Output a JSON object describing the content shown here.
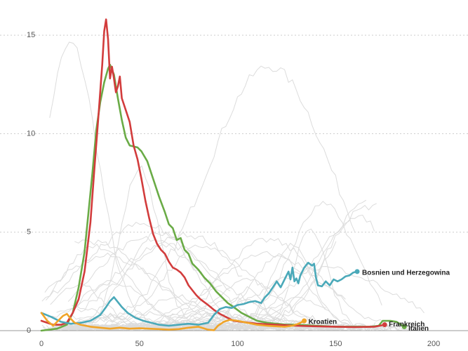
{
  "chart_data": {
    "type": "line",
    "title": "",
    "xlabel": "",
    "ylabel": "",
    "xlim": [
      0,
      215
    ],
    "ylim": [
      0,
      16.5
    ],
    "x_ticks": [
      0,
      50,
      100,
      150,
      200
    ],
    "y_ticks": [
      0,
      5,
      10,
      15
    ],
    "x_tick_labels": [
      "0",
      "50",
      "100",
      "150",
      "200"
    ],
    "y_tick_labels": [
      "0",
      "5",
      "10",
      "15"
    ],
    "grid": "horizontal-dashed",
    "background_series_color": "#dcdcdc",
    "series": [
      {
        "name": "Italien",
        "color": "#6aab46",
        "points": [
          [
            0,
            0
          ],
          [
            8,
            0.1
          ],
          [
            13,
            0.3
          ],
          [
            16,
            0.9
          ],
          [
            19,
            2.2
          ],
          [
            22,
            4
          ],
          [
            24,
            6
          ],
          [
            26,
            8
          ],
          [
            28,
            10.2
          ],
          [
            30,
            11.6
          ],
          [
            32,
            12.6
          ],
          [
            34,
            13.3
          ],
          [
            35,
            13.5
          ],
          [
            37,
            13
          ],
          [
            39,
            11.8
          ],
          [
            41,
            10.7
          ],
          [
            43,
            9.8
          ],
          [
            45,
            9.4
          ],
          [
            47,
            9.35
          ],
          [
            49,
            9.3
          ],
          [
            51,
            9.1
          ],
          [
            54,
            8.6
          ],
          [
            57,
            7.7
          ],
          [
            60,
            6.8
          ],
          [
            63,
            6
          ],
          [
            65,
            5.4
          ],
          [
            67,
            5.2
          ],
          [
            69,
            4.6
          ],
          [
            71,
            4.7
          ],
          [
            73,
            4.1
          ],
          [
            75,
            3.9
          ],
          [
            77,
            3.4
          ],
          [
            80,
            3.1
          ],
          [
            83,
            2.7
          ],
          [
            86,
            2.4
          ],
          [
            89,
            2
          ],
          [
            92,
            1.7
          ],
          [
            95,
            1.4
          ],
          [
            98,
            1.2
          ],
          [
            102,
            0.9
          ],
          [
            106,
            0.7
          ],
          [
            110,
            0.5
          ],
          [
            115,
            0.4
          ],
          [
            120,
            0.35
          ],
          [
            125,
            0.3
          ],
          [
            130,
            0.3
          ],
          [
            140,
            0.25
          ],
          [
            150,
            0.2
          ],
          [
            160,
            0.2
          ],
          [
            168,
            0.2
          ],
          [
            172,
            0.25
          ],
          [
            174,
            0.5
          ],
          [
            178,
            0.5
          ],
          [
            181,
            0.45
          ],
          [
            185,
            0.2
          ]
        ],
        "end_label": "Italien"
      },
      {
        "name": "Frankreich",
        "color": "#d23c3c",
        "points": [
          [
            0,
            0.5
          ],
          [
            6,
            0.3
          ],
          [
            10,
            0.3
          ],
          [
            13,
            0.4
          ],
          [
            16,
            0.9
          ],
          [
            19,
            1.6
          ],
          [
            22,
            3
          ],
          [
            25,
            5.5
          ],
          [
            27,
            8.2
          ],
          [
            29,
            10.8
          ],
          [
            31,
            13.5
          ],
          [
            32,
            15.2
          ],
          [
            33,
            15.8
          ],
          [
            34,
            14.8
          ],
          [
            35,
            12.8
          ],
          [
            36,
            13.4
          ],
          [
            37,
            12.8
          ],
          [
            38,
            12.1
          ],
          [
            39,
            12.4
          ],
          [
            40,
            12.9
          ],
          [
            41,
            11.8
          ],
          [
            43,
            11.2
          ],
          [
            45,
            10.6
          ],
          [
            47,
            9.4
          ],
          [
            49,
            8.7
          ],
          [
            51,
            7.7
          ],
          [
            53,
            6.6
          ],
          [
            55,
            5.7
          ],
          [
            57,
            4.9
          ],
          [
            59,
            4.4
          ],
          [
            61,
            4.1
          ],
          [
            63,
            3.9
          ],
          [
            65,
            3.5
          ],
          [
            67,
            3.2
          ],
          [
            69,
            3.1
          ],
          [
            71,
            2.95
          ],
          [
            73,
            2.7
          ],
          [
            75,
            2.3
          ],
          [
            77,
            2.05
          ],
          [
            79,
            1.8
          ],
          [
            81,
            1.6
          ],
          [
            83,
            1.45
          ],
          [
            85,
            1.3
          ],
          [
            88,
            1.05
          ],
          [
            91,
            0.85
          ],
          [
            95,
            0.65
          ],
          [
            98,
            0.5
          ],
          [
            102,
            0.45
          ],
          [
            106,
            0.4
          ],
          [
            110,
            0.35
          ],
          [
            120,
            0.3
          ],
          [
            130,
            0.25
          ],
          [
            140,
            0.22
          ],
          [
            150,
            0.2
          ],
          [
            160,
            0.18
          ],
          [
            170,
            0.2
          ],
          [
            175,
            0.3
          ]
        ],
        "end_label": "Frankreich"
      },
      {
        "name": "Bosnien und Herzegowina",
        "color": "#4aa9b9",
        "points": [
          [
            0,
            0.9
          ],
          [
            5,
            0.7
          ],
          [
            10,
            0.45
          ],
          [
            15,
            0.35
          ],
          [
            20,
            0.4
          ],
          [
            25,
            0.5
          ],
          [
            30,
            0.8
          ],
          [
            33,
            1.2
          ],
          [
            35,
            1.5
          ],
          [
            37,
            1.7
          ],
          [
            39,
            1.45
          ],
          [
            41,
            1.2
          ],
          [
            44,
            0.9
          ],
          [
            48,
            0.65
          ],
          [
            52,
            0.5
          ],
          [
            56,
            0.4
          ],
          [
            60,
            0.3
          ],
          [
            65,
            0.25
          ],
          [
            70,
            0.3
          ],
          [
            75,
            0.35
          ],
          [
            80,
            0.3
          ],
          [
            85,
            0.4
          ],
          [
            88,
            0.8
          ],
          [
            91,
            1.1
          ],
          [
            94,
            1.2
          ],
          [
            97,
            1.15
          ],
          [
            100,
            1.3
          ],
          [
            103,
            1.35
          ],
          [
            106,
            1.45
          ],
          [
            109,
            1.5
          ],
          [
            112,
            1.4
          ],
          [
            114,
            1.7
          ],
          [
            116,
            1.9
          ],
          [
            118,
            2.2
          ],
          [
            120,
            2.5
          ],
          [
            122,
            2.2
          ],
          [
            124,
            2.6
          ],
          [
            126,
            3
          ],
          [
            127,
            2.6
          ],
          [
            128,
            3.2
          ],
          [
            129,
            2.5
          ],
          [
            130,
            2.65
          ],
          [
            131,
            2.4
          ],
          [
            132,
            2.8
          ],
          [
            134,
            3.2
          ],
          [
            136,
            3.45
          ],
          [
            138,
            3.3
          ],
          [
            139,
            3.4
          ],
          [
            140,
            2.7
          ],
          [
            141,
            2.3
          ],
          [
            143,
            2.25
          ],
          [
            145,
            2.5
          ],
          [
            147,
            2.3
          ],
          [
            149,
            2.6
          ],
          [
            151,
            2.5
          ],
          [
            153,
            2.6
          ],
          [
            155,
            2.75
          ],
          [
            157,
            2.8
          ],
          [
            159,
            2.95
          ],
          [
            161,
            3.0
          ]
        ],
        "end_label": "Bosnien und Herzegowina"
      },
      {
        "name": "Kroatien",
        "color": "#f0a428",
        "points": [
          [
            0,
            0.9
          ],
          [
            3,
            0.5
          ],
          [
            6,
            0.25
          ],
          [
            9,
            0.55
          ],
          [
            11,
            0.75
          ],
          [
            13,
            0.85
          ],
          [
            15,
            0.6
          ],
          [
            17,
            0.4
          ],
          [
            20,
            0.3
          ],
          [
            25,
            0.2
          ],
          [
            30,
            0.15
          ],
          [
            35,
            0.1
          ],
          [
            40,
            0.15
          ],
          [
            45,
            0.1
          ],
          [
            50,
            0.12
          ],
          [
            55,
            0.1
          ],
          [
            60,
            0.08
          ],
          [
            65,
            0.05
          ],
          [
            70,
            0.08
          ],
          [
            75,
            0.15
          ],
          [
            80,
            0.2
          ],
          [
            85,
            0.05
          ],
          [
            88,
            0.02
          ],
          [
            90,
            0.25
          ],
          [
            93,
            0.45
          ],
          [
            96,
            0.55
          ],
          [
            100,
            0.5
          ],
          [
            105,
            0.4
          ],
          [
            110,
            0.3
          ],
          [
            115,
            0.25
          ],
          [
            120,
            0.22
          ],
          [
            124,
            0.2
          ],
          [
            128,
            0.25
          ],
          [
            131,
            0.35
          ],
          [
            133,
            0.45
          ],
          [
            134,
            0.5
          ]
        ],
        "end_label": "Kroatien"
      }
    ]
  }
}
